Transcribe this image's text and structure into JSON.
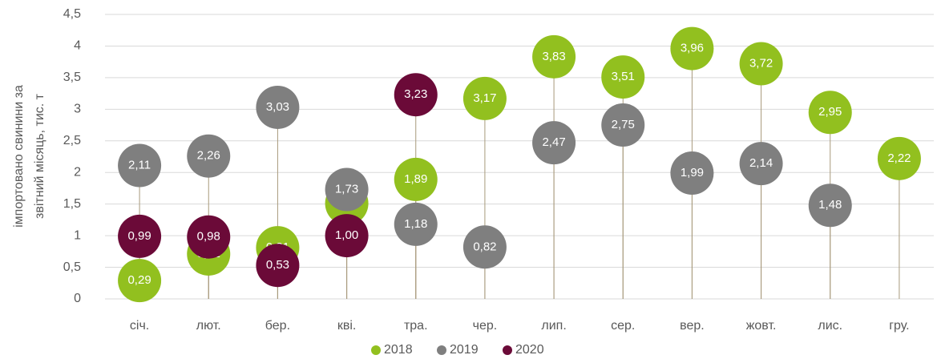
{
  "chart_data": {
    "type": "dot",
    "ylabel": [
      "імпортовано свинини за",
      "звітний місяць, тис. т"
    ],
    "categories": [
      "січ.",
      "лют.",
      "бер.",
      "кві.",
      "тра.",
      "чер.",
      "лип.",
      "сер.",
      "вер.",
      "жовт.",
      "лис.",
      "гру."
    ],
    "series": [
      {
        "name": "2018",
        "color": "#92c01f",
        "values": [
          0.29,
          0.71,
          0.81,
          1.51,
          1.89,
          3.17,
          3.83,
          3.51,
          3.96,
          3.72,
          2.95,
          2.22
        ],
        "value_labels": [
          "0,29",
          "0,71",
          "0,81",
          "1,51",
          "1,89",
          "3,17",
          "3,83",
          "3,51",
          "3,96",
          "3,72",
          "2,95",
          "2,22"
        ]
      },
      {
        "name": "2019",
        "color": "#7f7f7f",
        "values": [
          2.11,
          2.26,
          3.03,
          1.73,
          1.18,
          0.82,
          2.47,
          2.75,
          1.99,
          2.14,
          1.48,
          null
        ],
        "value_labels": [
          "2,11",
          "2,26",
          "3,03",
          "1,73",
          "1,18",
          "0,82",
          "2,47",
          "2,75",
          "1,99",
          "2,14",
          "1,48",
          null
        ]
      },
      {
        "name": "2020",
        "color": "#6b0a38",
        "values": [
          0.99,
          0.98,
          0.53,
          1.0,
          3.23,
          null,
          null,
          null,
          null,
          null,
          null,
          null
        ],
        "value_labels": [
          "0,99",
          "0,98",
          "0,53",
          "1,00",
          "3,23",
          null,
          null,
          null,
          null,
          null,
          null,
          null
        ]
      }
    ],
    "ylim": [
      0,
      4.5
    ],
    "yticks": [
      0,
      {
        "value": 0.5,
        "label": "0,5"
      },
      1,
      {
        "value": 1.5,
        "label": "1,5"
      },
      2,
      {
        "value": 2.5,
        "label": "2,5"
      },
      3,
      {
        "value": 3.5,
        "label": "3,5"
      },
      4,
      {
        "value": 4.5,
        "label": "4,5"
      }
    ],
    "grid": true,
    "legend": "bottom",
    "droplines": true
  }
}
